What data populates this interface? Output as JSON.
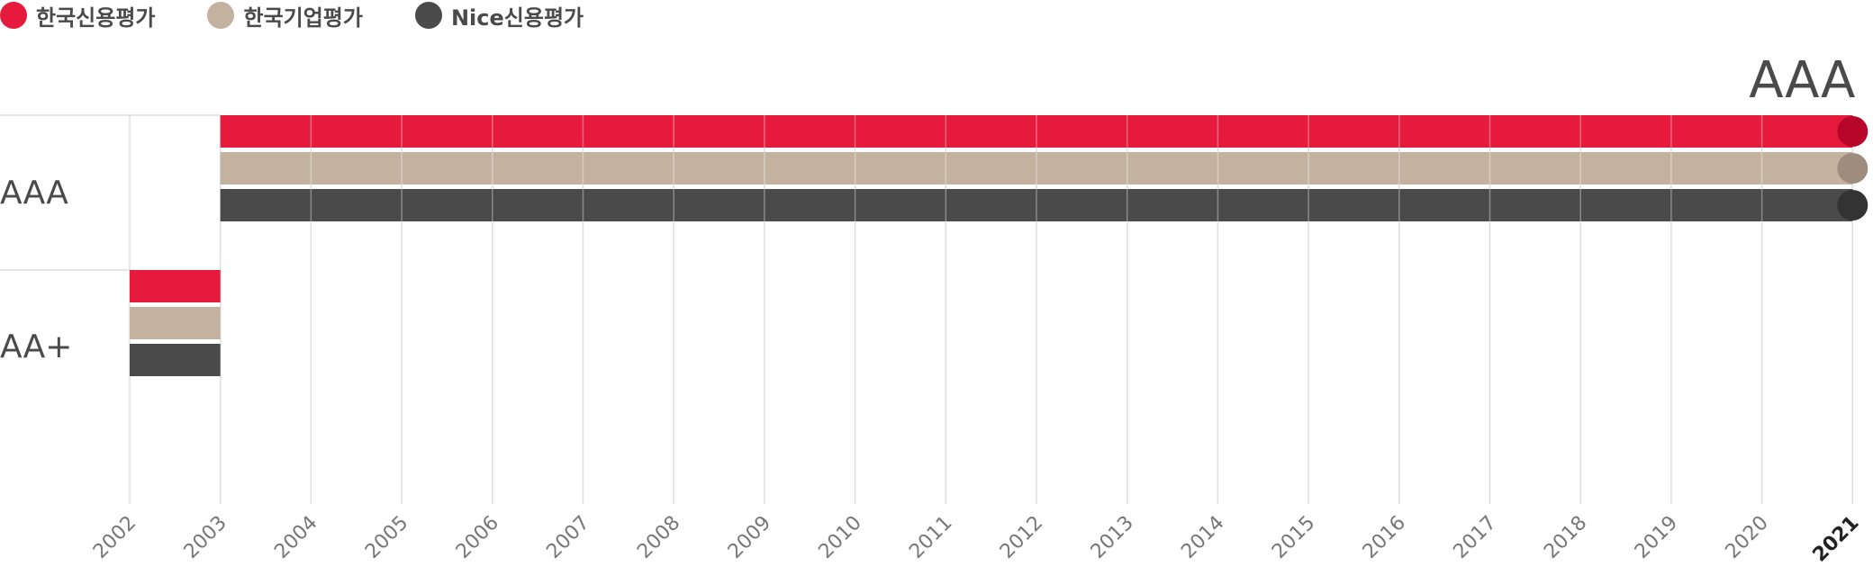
{
  "legend": {
    "items": [
      {
        "label": "한국신용평가",
        "color": "#e51a3c"
      },
      {
        "label": "한국기업평가",
        "color": "#c4b2a0"
      },
      {
        "label": "Nice신용평가",
        "color": "#4a4a4a"
      }
    ]
  },
  "colors": {
    "grid": "#dedede",
    "grid_on_bar": "#ffffff",
    "text": "#4a4a4a",
    "end_dot_red": "#b8062b",
    "end_dot_beige": "#9e8c7c",
    "end_dot_dark": "#333333"
  },
  "chart_data": {
    "type": "bar",
    "orientation": "horizontal",
    "x": [
      "2002",
      "2003",
      "2004",
      "2005",
      "2006",
      "2007",
      "2008",
      "2009",
      "2010",
      "2011",
      "2012",
      "2013",
      "2014",
      "2015",
      "2016",
      "2017",
      "2018",
      "2019",
      "2020",
      "2021"
    ],
    "highlighted_x": "2021",
    "y_categories": [
      "AAA",
      "AA+"
    ],
    "current_rating": "AAA",
    "series": [
      {
        "name": "한국신용평가",
        "color": "#e51a3c",
        "periods": [
          {
            "rating": "AA+",
            "from": "2002",
            "to": "2003"
          },
          {
            "rating": "AAA",
            "from": "2003",
            "to": "2021"
          }
        ]
      },
      {
        "name": "한국기업평가",
        "color": "#c4b2a0",
        "periods": [
          {
            "rating": "AA+",
            "from": "2002",
            "to": "2003"
          },
          {
            "rating": "AAA",
            "from": "2003",
            "to": "2021"
          }
        ]
      },
      {
        "name": "Nice신용평가",
        "color": "#4a4a4a",
        "periods": [
          {
            "rating": "AA+",
            "from": "2002",
            "to": "2003"
          },
          {
            "rating": "AAA",
            "from": "2003",
            "to": "2021"
          }
        ]
      }
    ],
    "grid": true,
    "legend_position": "top-left"
  }
}
